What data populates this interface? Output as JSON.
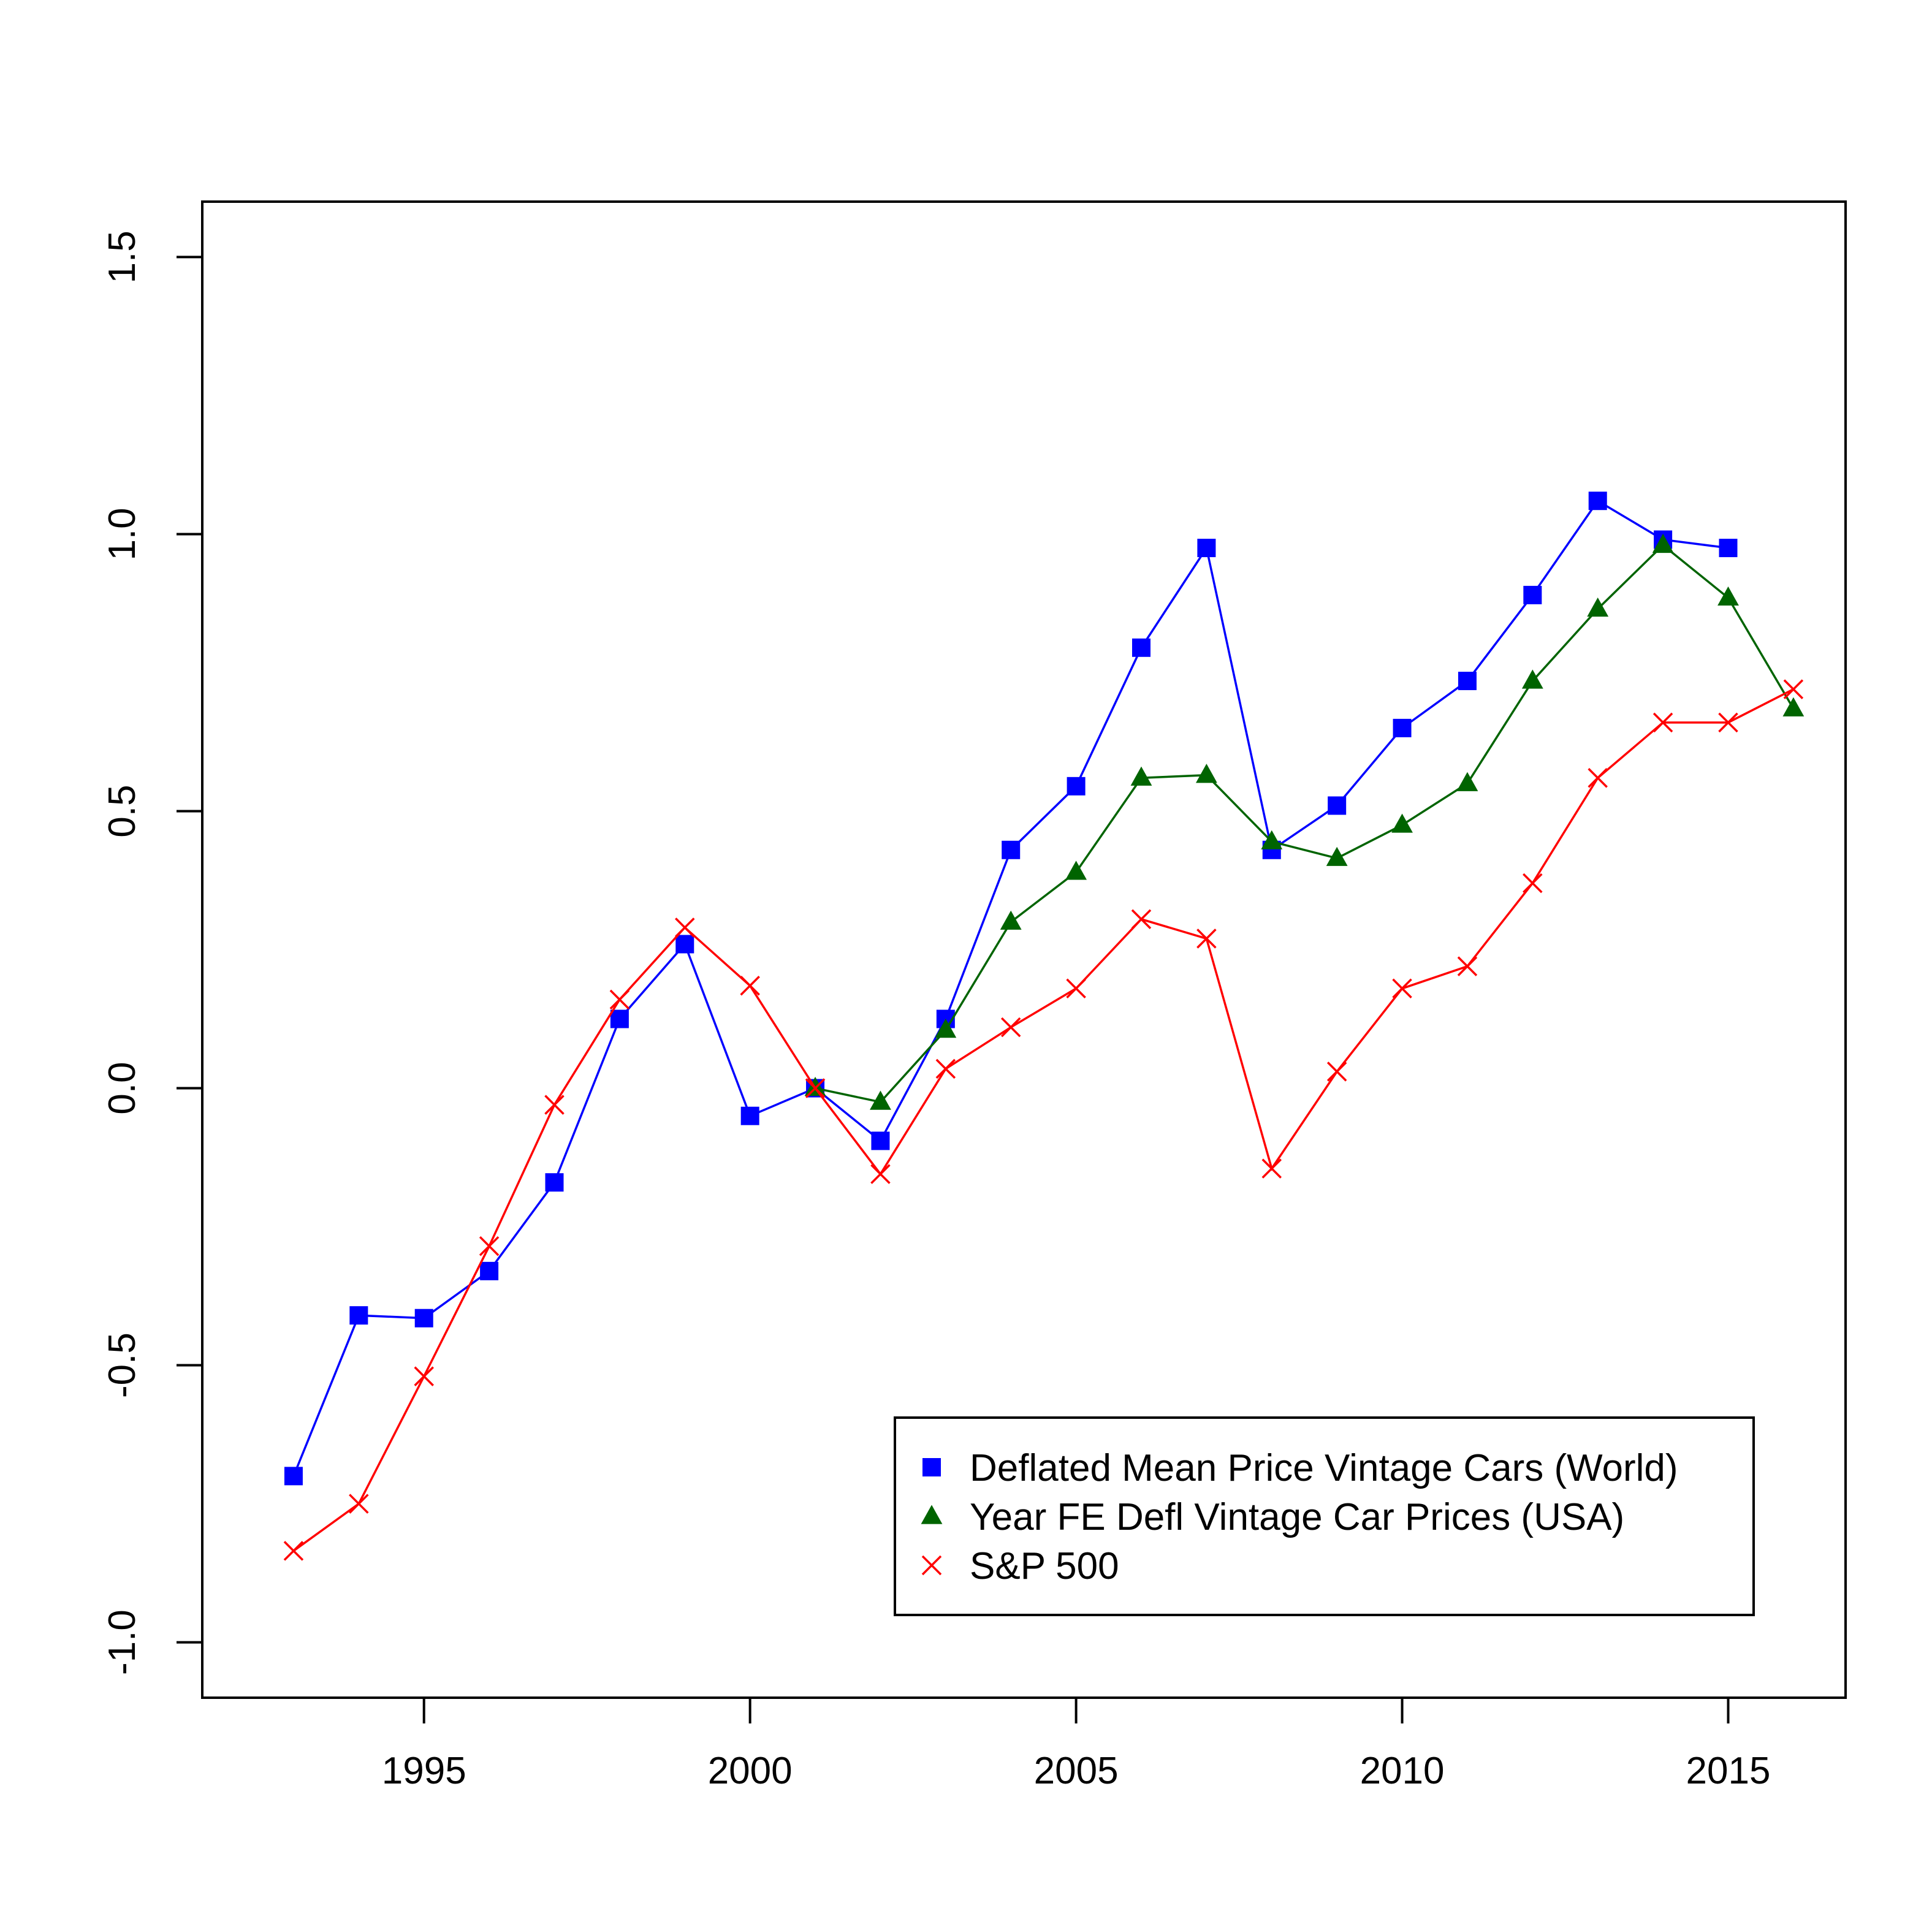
{
  "chart_data": {
    "type": "line",
    "title": "",
    "xlabel": "",
    "ylabel": "",
    "xlim": [
      1991.6,
      2016.8
    ],
    "ylim": [
      -1.1,
      1.6
    ],
    "x_ticks": [
      1995,
      2000,
      2005,
      2010,
      2015
    ],
    "y_ticks": [
      -1.0,
      -0.5,
      0.0,
      0.5,
      1.0,
      1.5
    ],
    "x_tick_labels": [
      "1995",
      "2000",
      "2005",
      "2010",
      "2015"
    ],
    "y_tick_labels": [
      "-1.0",
      "-0.5",
      "0.0",
      "0.5",
      "1.0",
      "1.5"
    ],
    "grid": false,
    "legend_position": "bottom-right",
    "series": [
      {
        "name": "Deflated Mean Price Vintage Cars (World)",
        "color": "#0000ff",
        "marker": "square",
        "x": [
          1993,
          1994,
          1995,
          1996,
          1997,
          1998,
          1999,
          2000,
          2001,
          2002,
          2003,
          2004,
          2005,
          2006,
          2007,
          2008,
          2009,
          2010,
          2011,
          2012,
          2013,
          2014,
          2015
        ],
        "y": [
          -0.7,
          -0.41,
          -0.415,
          -0.33,
          -0.17,
          0.125,
          0.26,
          -0.05,
          0.0,
          -0.095,
          0.125,
          0.43,
          0.545,
          0.795,
          0.975,
          0.43,
          0.51,
          0.65,
          0.735,
          0.89,
          1.06,
          0.99,
          0.975
        ]
      },
      {
        "name": "Year FE Defl Vintage Car Prices (USA)",
        "color": "#006400",
        "marker": "triangle",
        "x": [
          2001,
          2002,
          2003,
          2004,
          2005,
          2006,
          2007,
          2008,
          2009,
          2010,
          2011,
          2012,
          2013,
          2014,
          2015,
          2016
        ],
        "y": [
          0.0,
          -0.025,
          0.105,
          0.3,
          0.39,
          0.56,
          0.565,
          0.445,
          0.415,
          0.475,
          0.55,
          0.735,
          0.865,
          0.98,
          0.885,
          0.685
        ]
      },
      {
        "name": "S&P 500",
        "color": "#ff0000",
        "marker": "cross",
        "x": [
          1993,
          1994,
          1995,
          1996,
          1997,
          1998,
          1999,
          2000,
          2001,
          2002,
          2003,
          2004,
          2005,
          2006,
          2007,
          2008,
          2009,
          2010,
          2011,
          2012,
          2013,
          2014,
          2015,
          2016
        ],
        "y": [
          -0.835,
          -0.75,
          -0.52,
          -0.285,
          -0.03,
          0.16,
          0.29,
          0.185,
          0.0,
          -0.155,
          0.035,
          0.11,
          0.18,
          0.305,
          0.27,
          -0.145,
          0.03,
          0.18,
          0.22,
          0.37,
          0.56,
          0.66,
          0.66,
          0.72
        ]
      }
    ]
  }
}
